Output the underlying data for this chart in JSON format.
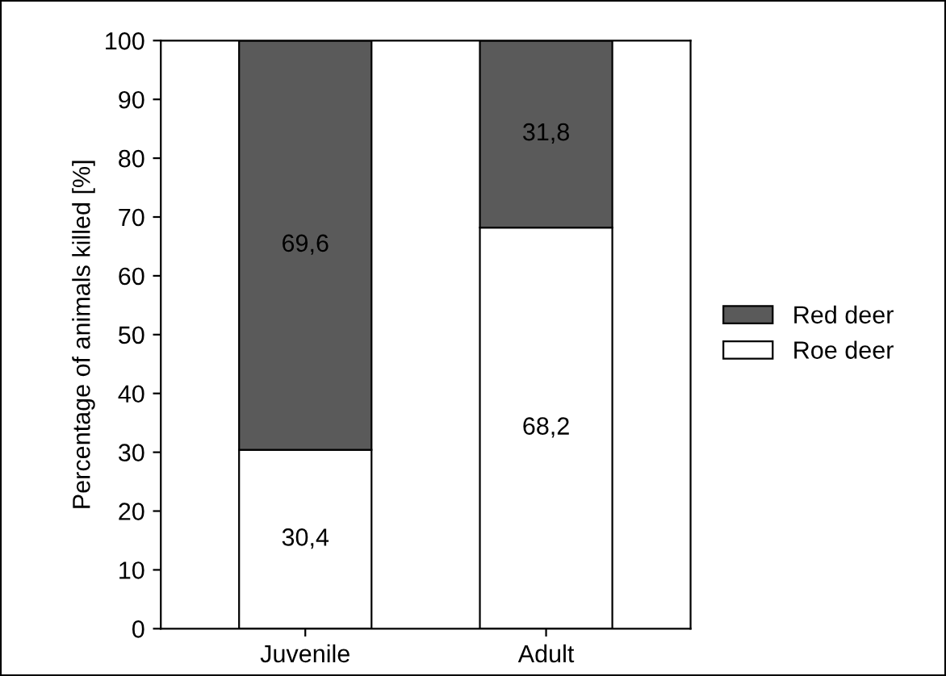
{
  "chart_data": {
    "type": "bar",
    "ylabel": "Percentage of animals killed [%]",
    "categories": [
      "Juvenile",
      "Adult"
    ],
    "stacked": true,
    "series": [
      {
        "name": "Roe deer",
        "color": "#ffffff",
        "values": [
          30.4,
          68.2
        ],
        "value_labels": [
          "30,4",
          "68,2"
        ]
      },
      {
        "name": "Red deer",
        "color": "#5a5a5a",
        "values": [
          69.6,
          31.8
        ],
        "value_labels": [
          "69,6",
          "31,8"
        ]
      }
    ],
    "ylim": [
      0,
      100
    ],
    "yticks": [
      0,
      10,
      20,
      30,
      40,
      50,
      60,
      70,
      80,
      90,
      100
    ],
    "grid": false,
    "legend": "right"
  }
}
